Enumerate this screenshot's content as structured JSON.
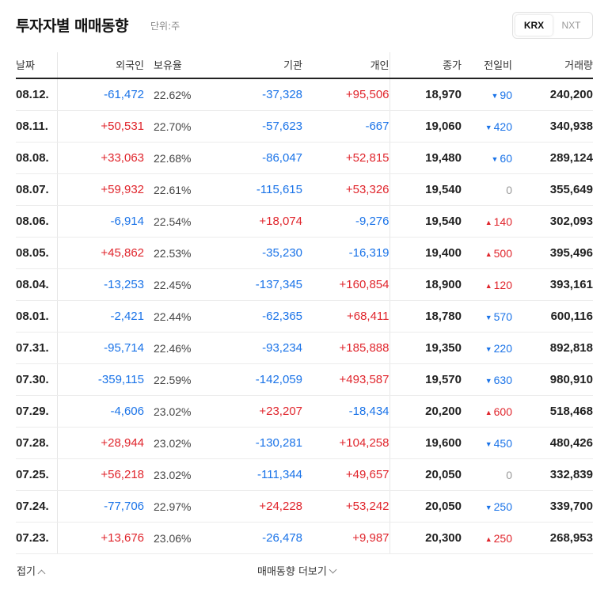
{
  "header": {
    "title": "투자자별 매매동향",
    "unit": "단위:주",
    "exchanges": [
      "KRX",
      "NXT"
    ],
    "selected_exchange": "KRX"
  },
  "colors": {
    "up": "#e0252c",
    "down": "#1a73e8",
    "flat": "#999999"
  },
  "table": {
    "columns": [
      "날짜",
      "외국인",
      "보유율",
      "기관",
      "개인",
      "종가",
      "전일비",
      "거래량"
    ],
    "rows": [
      {
        "date": "08.12.",
        "foreign": "-61,472",
        "holding": "22.62%",
        "inst": "-37,328",
        "indiv": "+95,506",
        "close": "18,970",
        "change": "90",
        "dir": "down",
        "volume": "240,200"
      },
      {
        "date": "08.11.",
        "foreign": "+50,531",
        "holding": "22.70%",
        "inst": "-57,623",
        "indiv": "-667",
        "close": "19,060",
        "change": "420",
        "dir": "down",
        "volume": "340,938"
      },
      {
        "date": "08.08.",
        "foreign": "+33,063",
        "holding": "22.68%",
        "inst": "-86,047",
        "indiv": "+52,815",
        "close": "19,480",
        "change": "60",
        "dir": "down",
        "volume": "289,124"
      },
      {
        "date": "08.07.",
        "foreign": "+59,932",
        "holding": "22.61%",
        "inst": "-115,615",
        "indiv": "+53,326",
        "close": "19,540",
        "change": "0",
        "dir": "flat",
        "volume": "355,649"
      },
      {
        "date": "08.06.",
        "foreign": "-6,914",
        "holding": "22.54%",
        "inst": "+18,074",
        "indiv": "-9,276",
        "close": "19,540",
        "change": "140",
        "dir": "up",
        "volume": "302,093"
      },
      {
        "date": "08.05.",
        "foreign": "+45,862",
        "holding": "22.53%",
        "inst": "-35,230",
        "indiv": "-16,319",
        "close": "19,400",
        "change": "500",
        "dir": "up",
        "volume": "395,496"
      },
      {
        "date": "08.04.",
        "foreign": "-13,253",
        "holding": "22.45%",
        "inst": "-137,345",
        "indiv": "+160,854",
        "close": "18,900",
        "change": "120",
        "dir": "up",
        "volume": "393,161"
      },
      {
        "date": "08.01.",
        "foreign": "-2,421",
        "holding": "22.44%",
        "inst": "-62,365",
        "indiv": "+68,411",
        "close": "18,780",
        "change": "570",
        "dir": "down",
        "volume": "600,116"
      },
      {
        "date": "07.31.",
        "foreign": "-95,714",
        "holding": "22.46%",
        "inst": "-93,234",
        "indiv": "+185,888",
        "close": "19,350",
        "change": "220",
        "dir": "down",
        "volume": "892,818"
      },
      {
        "date": "07.30.",
        "foreign": "-359,115",
        "holding": "22.59%",
        "inst": "-142,059",
        "indiv": "+493,587",
        "close": "19,570",
        "change": "630",
        "dir": "down",
        "volume": "980,910"
      },
      {
        "date": "07.29.",
        "foreign": "-4,606",
        "holding": "23.02%",
        "inst": "+23,207",
        "indiv": "-18,434",
        "close": "20,200",
        "change": "600",
        "dir": "up",
        "volume": "518,468"
      },
      {
        "date": "07.28.",
        "foreign": "+28,944",
        "holding": "23.02%",
        "inst": "-130,281",
        "indiv": "+104,258",
        "close": "19,600",
        "change": "450",
        "dir": "down",
        "volume": "480,426"
      },
      {
        "date": "07.25.",
        "foreign": "+56,218",
        "holding": "23.02%",
        "inst": "-111,344",
        "indiv": "+49,657",
        "close": "20,050",
        "change": "0",
        "dir": "flat",
        "volume": "332,839"
      },
      {
        "date": "07.24.",
        "foreign": "-77,706",
        "holding": "22.97%",
        "inst": "+24,228",
        "indiv": "+53,242",
        "close": "20,050",
        "change": "250",
        "dir": "down",
        "volume": "339,700"
      },
      {
        "date": "07.23.",
        "foreign": "+13,676",
        "holding": "23.06%",
        "inst": "-26,478",
        "indiv": "+9,987",
        "close": "20,300",
        "change": "250",
        "dir": "up",
        "volume": "268,953"
      }
    ]
  },
  "footer": {
    "collapse_label": "접기",
    "more_label": "매매동향 더보기"
  }
}
